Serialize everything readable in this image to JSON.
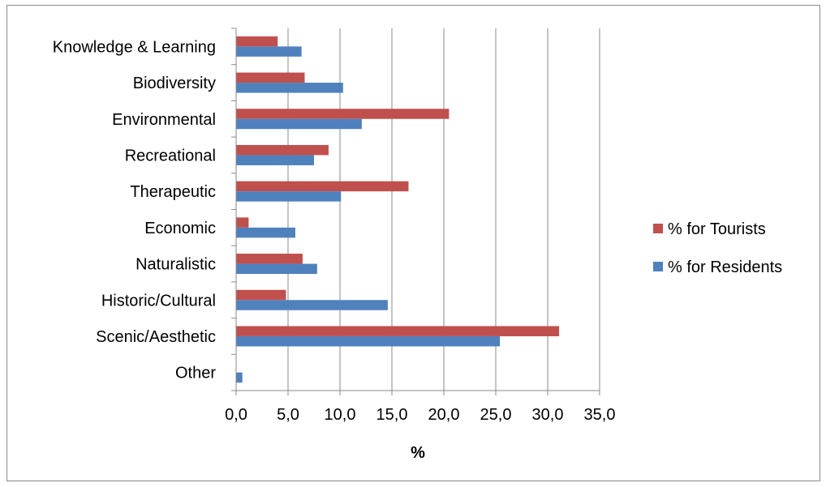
{
  "chart_data": {
    "type": "bar",
    "orientation": "horizontal",
    "categories": [
      "Knowledge & Learning",
      "Biodiversity",
      "Environmental",
      "Recreational",
      "Therapeutic",
      "Economic",
      "Naturalistic",
      "Historic/Cultural",
      "Scenic/Aesthetic",
      "Other"
    ],
    "series": [
      {
        "name": "% for Tourists",
        "color": "#C0504D",
        "values": [
          4.0,
          6.6,
          20.5,
          8.9,
          16.6,
          1.2,
          6.4,
          4.8,
          31.1,
          0.0
        ]
      },
      {
        "name": "% for Residents",
        "color": "#4F81BD",
        "values": [
          6.3,
          10.3,
          12.1,
          7.5,
          10.1,
          5.7,
          7.8,
          14.6,
          25.4,
          0.6
        ]
      }
    ],
    "xlim": [
      0,
      35
    ],
    "xticks": [
      "0,0",
      "5,0",
      "10,0",
      "15,0",
      "20,0",
      "25,0",
      "30,0",
      "35,0"
    ],
    "xlabel": "%",
    "ylabel": "",
    "title": "",
    "grid": "vertical",
    "legend_position": "right"
  }
}
